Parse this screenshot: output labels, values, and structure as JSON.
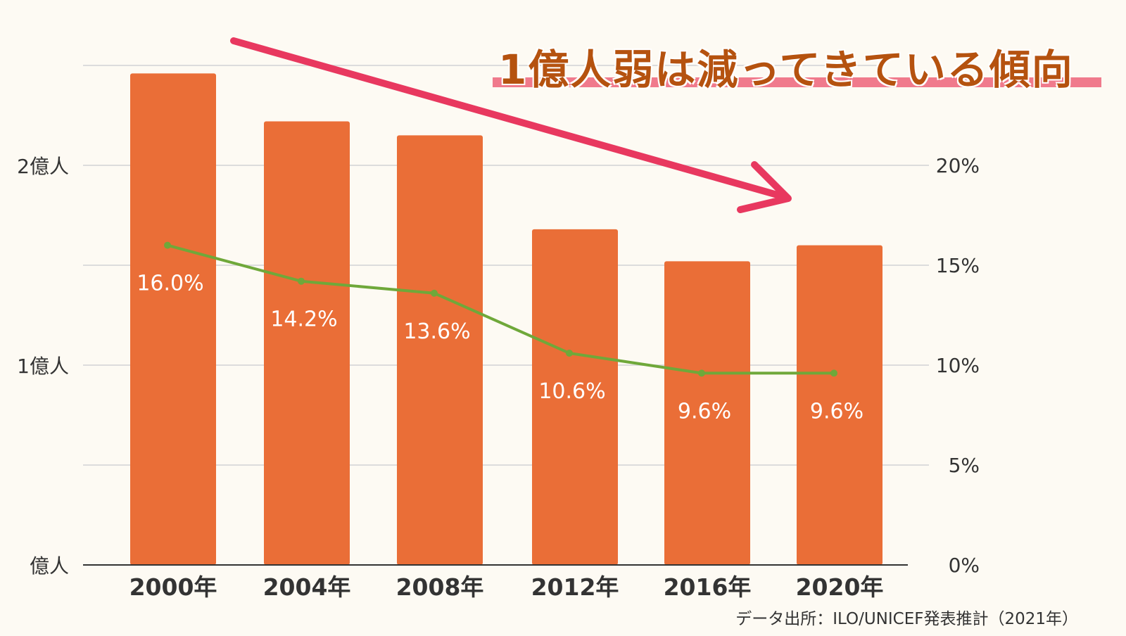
{
  "headline": "1億人弱は減ってきている傾向",
  "source": "データ出所：ILO/UNICEF発表推計（2021年）",
  "colors": {
    "bar": "#EA6E37",
    "line": "#6FA83A",
    "arrow": "#E8385F",
    "headline_text": "#B5520F",
    "headline_underline": "#F07A8C",
    "grid": "#DCDCDC",
    "axis": "#333333"
  },
  "chart_data": {
    "type": "bar",
    "categories": [
      "2000年",
      "2004年",
      "2008年",
      "2012年",
      "2016年",
      "2020年"
    ],
    "values": [
      246,
      222,
      215,
      168,
      152,
      160
    ],
    "ylim": [
      0,
      250
    ],
    "yticks": [
      {
        "value": 0,
        "label": "億人"
      },
      {
        "value": 100,
        "label": "1億人"
      },
      {
        "value": 200,
        "label": "2億人"
      }
    ],
    "line_series": {
      "values": [
        16.0,
        14.2,
        13.6,
        10.6,
        9.6,
        9.6
      ],
      "labels": [
        "16.0%",
        "14.2%",
        "13.6%",
        "10.6%",
        "9.6%",
        "9.6%"
      ],
      "ylim": [
        0,
        25
      ],
      "yticks": [
        {
          "value": 0,
          "label": "0%"
        },
        {
          "value": 5,
          "label": "5%"
        },
        {
          "value": 10,
          "label": "10%"
        },
        {
          "value": 15,
          "label": "15%"
        },
        {
          "value": 20,
          "label": "20%"
        }
      ]
    },
    "grid": true,
    "annotation": "downward trend arrow"
  }
}
